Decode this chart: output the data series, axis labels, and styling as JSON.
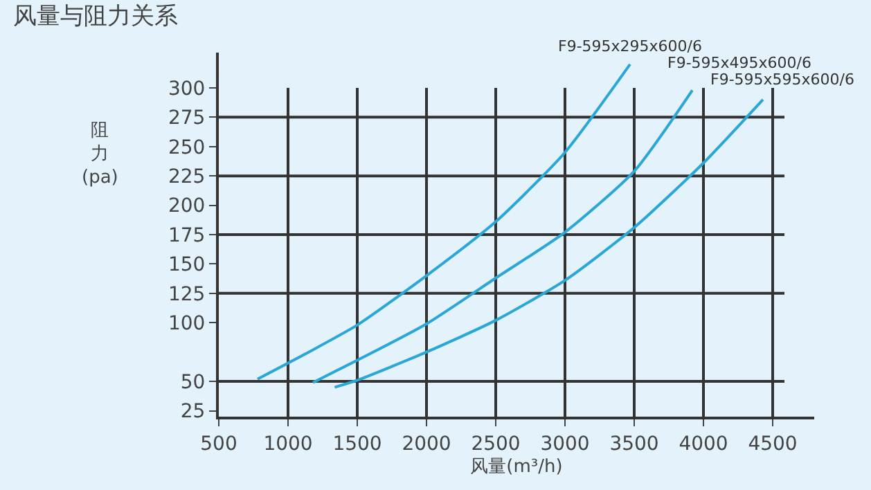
{
  "chart_data": {
    "type": "line",
    "title": "风量与阻力关系",
    "xlabel": "风量(m³/h)",
    "ylabel": "阻力(pa)",
    "series": [
      {
        "name": "F9-595x295x600/6",
        "color": "#2aa7d6",
        "x": [
          780,
          1150,
          1500,
          2000,
          2500,
          3000,
          3470
        ],
        "values": [
          52,
          75,
          98,
          140,
          186,
          245,
          320
        ]
      },
      {
        "name": "F9-595x495x600/6",
        "color": "#2aa7d6",
        "x": [
          1180,
          1500,
          2000,
          2500,
          3000,
          3500,
          3920
        ],
        "values": [
          49,
          68,
          99,
          138,
          177,
          229,
          298
        ]
      },
      {
        "name": "F9-595x595x600/6",
        "color": "#2aa7d6",
        "x": [
          1337,
          1500,
          2000,
          2500,
          3000,
          3500,
          4000,
          4430
        ],
        "values": [
          45,
          51,
          75,
          102,
          136,
          181,
          236,
          290
        ]
      }
    ],
    "xlim": [
      500,
      4800
    ],
    "xticks": [
      500,
      1000,
      1500,
      2000,
      2500,
      3000,
      3500,
      4000,
      4500
    ],
    "ylim": [
      20,
      330
    ],
    "yticks": [
      25,
      50,
      100,
      125,
      150,
      175,
      200,
      225,
      250,
      275,
      300
    ],
    "grid": true,
    "legend": false,
    "marker": "none",
    "line_style": "solid"
  }
}
